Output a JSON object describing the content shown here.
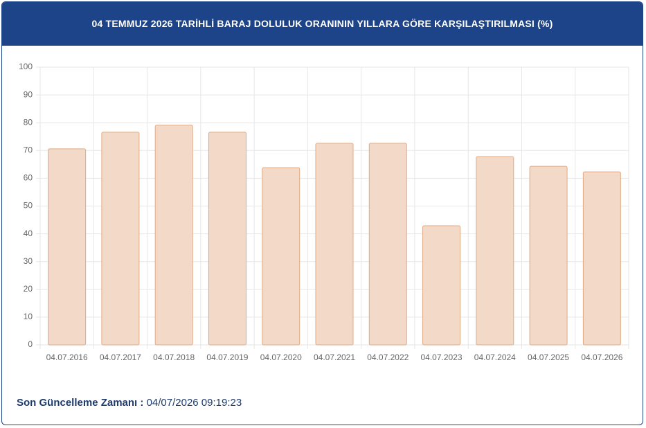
{
  "chart_data": {
    "type": "bar",
    "title": "04 TEMMUZ 2026 TARİHLİ BARAJ DOLULUK ORANININ YILLARA GÖRE KARŞILAŞTIRILMASI (%)",
    "categories": [
      "04.07.2016",
      "04.07.2017",
      "04.07.2018",
      "04.07.2019",
      "04.07.2020",
      "04.07.2021",
      "04.07.2022",
      "04.07.2023",
      "04.07.2024",
      "04.07.2025",
      "04.07.2026"
    ],
    "values": [
      70.6,
      76.6,
      79.1,
      76.6,
      63.8,
      72.6,
      72.6,
      42.9,
      67.8,
      64.3,
      62.3
    ],
    "color": "#f3d9c8",
    "edge_color": "#e0aa84",
    "ylim": [
      0,
      100
    ],
    "yticks": [
      0,
      10,
      20,
      30,
      40,
      50,
      60,
      70,
      80,
      90,
      100
    ],
    "grid": true
  },
  "footer": {
    "label": "Son Güncelleme Zamanı :",
    "value": "04/07/2026 09:19:23"
  }
}
